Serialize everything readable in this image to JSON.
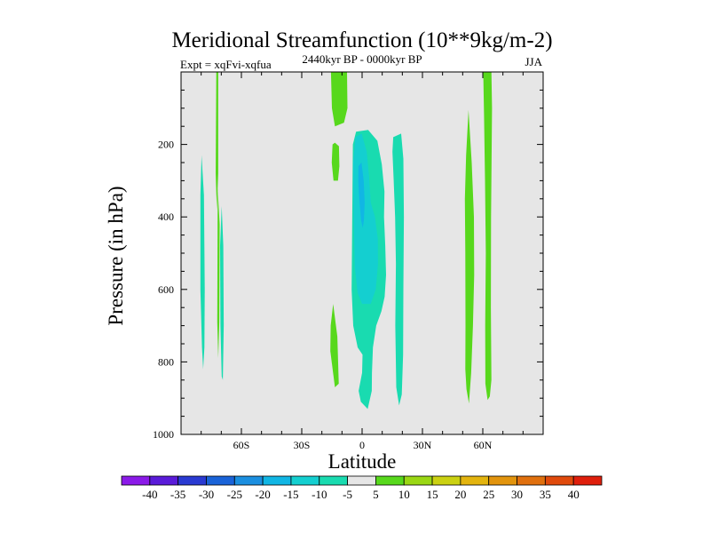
{
  "chart_data": {
    "type": "heatmap",
    "title": "Meridional Streamfunction (10**9kg/m-2)",
    "subtitle": "2440kyr BP - 0000kyr BP",
    "left_label": "Expt = xqFvi-xqfua",
    "right_label": "JJA",
    "xlabel": "Latitude",
    "ylabel": "Pressure (in hPa)",
    "xlim": [
      -90,
      90
    ],
    "ylim": [
      1000,
      0
    ],
    "x_ticks": [
      {
        "value": -60,
        "label": "60S"
      },
      {
        "value": -30,
        "label": "30S"
      },
      {
        "value": 0,
        "label": "0"
      },
      {
        "value": 30,
        "label": "30N"
      },
      {
        "value": 60,
        "label": "60N"
      }
    ],
    "y_ticks": [
      {
        "value": 200,
        "label": "200"
      },
      {
        "value": 400,
        "label": "400"
      },
      {
        "value": 600,
        "label": "600"
      },
      {
        "value": 800,
        "label": "800"
      },
      {
        "value": 1000,
        "label": "1000"
      }
    ],
    "background_color": "#e6e6e6",
    "contour_levels": [
      -40,
      -35,
      -30,
      -25,
      -20,
      -15,
      -10,
      -5,
      5,
      10,
      15,
      20,
      25,
      30,
      35,
      40
    ],
    "colorbar_colors": [
      "#8b1ae8",
      "#5a1bd9",
      "#2a3ad2",
      "#1a63d8",
      "#1b8fe0",
      "#11b6e4",
      "#14cfd0",
      "#19dbb0",
      "#e6e6e6",
      "#57d81c",
      "#9ad714",
      "#cbd112",
      "#e3b40e",
      "#e2940d",
      "#e0700e",
      "#e04a0c",
      "#df1f0c"
    ],
    "regions": [
      {
        "level": "5 to 10",
        "color": "#57d81c",
        "points": [
          [
            -72.5,
            0
          ],
          [
            -71.5,
            0
          ],
          [
            -71.5,
            280
          ],
          [
            -72.2,
            380
          ],
          [
            -72.8,
            280
          ]
        ]
      },
      {
        "level": "5 to 10",
        "color": "#57d81c",
        "points": [
          [
            -71.8,
            320
          ],
          [
            -70.8,
            420
          ],
          [
            -71.0,
            690
          ],
          [
            -71.5,
            790
          ],
          [
            -72.0,
            690
          ]
        ]
      },
      {
        "level": "-10 to -5",
        "color": "#19dbb0",
        "points": [
          [
            -79.8,
            230
          ],
          [
            -78.6,
            340
          ],
          [
            -78.2,
            600
          ],
          [
            -78.4,
            760
          ],
          [
            -79.0,
            820
          ],
          [
            -79.6,
            760
          ],
          [
            -80.4,
            600
          ],
          [
            -80.4,
            340
          ]
        ]
      },
      {
        "level": "-10 to -5",
        "color": "#19dbb0",
        "points": [
          [
            -69.8,
            370
          ],
          [
            -69.0,
            480
          ],
          [
            -68.8,
            700
          ],
          [
            -69.2,
            850
          ],
          [
            -69.8,
            840
          ],
          [
            -70.4,
            700
          ],
          [
            -70.6,
            480
          ]
        ]
      },
      {
        "level": "5 to 10",
        "color": "#57d81c",
        "points": [
          [
            -15.5,
            0
          ],
          [
            -7.5,
            0
          ],
          [
            -7.3,
            100
          ],
          [
            -9.0,
            140
          ],
          [
            -13.5,
            150
          ],
          [
            -15.0,
            100
          ]
        ]
      },
      {
        "level": "5 to 10",
        "color": "#57d81c",
        "points": [
          [
            -13.5,
            195
          ],
          [
            -11.5,
            205
          ],
          [
            -11.3,
            260
          ],
          [
            -12.0,
            300
          ],
          [
            -14.2,
            300
          ],
          [
            -15.1,
            250
          ],
          [
            -14.7,
            200
          ]
        ]
      },
      {
        "level": "5 to 10",
        "color": "#57d81c",
        "points": [
          [
            -14.4,
            640
          ],
          [
            -12.3,
            730
          ],
          [
            -11.6,
            860
          ],
          [
            -13.5,
            870
          ],
          [
            -15.8,
            770
          ],
          [
            -15.6,
            700
          ]
        ]
      },
      {
        "level": "-10 to -5",
        "color": "#19dbb0",
        "points": [
          [
            -3.0,
            165
          ],
          [
            3.0,
            160
          ],
          [
            7.6,
            190
          ],
          [
            9.8,
            255
          ],
          [
            11.1,
            330
          ],
          [
            10.9,
            400
          ],
          [
            11.5,
            480
          ],
          [
            11.9,
            560
          ],
          [
            11.2,
            620
          ],
          [
            9.6,
            660
          ],
          [
            7.0,
            700
          ],
          [
            5.4,
            760
          ],
          [
            4.9,
            830
          ],
          [
            4.8,
            880
          ],
          [
            2.8,
            930
          ],
          [
            -0.6,
            910
          ],
          [
            -1.7,
            880
          ],
          [
            0.0,
            830
          ],
          [
            0.2,
            780
          ],
          [
            -2.2,
            760
          ],
          [
            -4.4,
            700
          ],
          [
            -5.2,
            600
          ],
          [
            -4.9,
            400
          ],
          [
            -4.6,
            200
          ]
        ]
      },
      {
        "level": "-15 to -10",
        "color": "#14cfd0",
        "points": [
          [
            -4.4,
            250
          ],
          [
            -3.3,
            180
          ],
          [
            -0.2,
            170
          ],
          [
            2.3,
            220
          ],
          [
            3.5,
            290
          ],
          [
            4.3,
            360
          ],
          [
            6.4,
            400
          ],
          [
            7.8,
            460
          ],
          [
            7.9,
            530
          ],
          [
            6.8,
            600
          ],
          [
            4.3,
            640
          ],
          [
            0.0,
            640
          ],
          [
            -2.2,
            610
          ],
          [
            -3.6,
            540
          ],
          [
            -4.2,
            400
          ]
        ]
      },
      {
        "level": "-20 to -15",
        "color": "#11b6e4",
        "points": [
          [
            -1.8,
            260
          ],
          [
            -0.3,
            250
          ],
          [
            0.8,
            300
          ],
          [
            1.3,
            360
          ],
          [
            0.9,
            410
          ],
          [
            0.3,
            430
          ],
          [
            -0.5,
            410
          ],
          [
            -1.4,
            350
          ],
          [
            -1.9,
            300
          ]
        ]
      },
      {
        "level": "-10 to -5",
        "color": "#19dbb0",
        "points": [
          [
            15.5,
            180
          ],
          [
            19.4,
            170
          ],
          [
            20.5,
            240
          ],
          [
            20.8,
            400
          ],
          [
            20.5,
            600
          ],
          [
            20.4,
            780
          ],
          [
            19.7,
            890
          ],
          [
            18.4,
            920
          ],
          [
            17.0,
            870
          ],
          [
            16.5,
            700
          ],
          [
            16.8,
            530
          ],
          [
            16.4,
            400
          ],
          [
            15.7,
            300
          ],
          [
            15.1,
            220
          ]
        ]
      },
      {
        "level": "5 to 10",
        "color": "#57d81c",
        "points": [
          [
            60.2,
            0
          ],
          [
            64.3,
            0
          ],
          [
            64.6,
            100
          ],
          [
            64.1,
            400
          ],
          [
            64.0,
            650
          ],
          [
            64.3,
            850
          ],
          [
            63.5,
            895
          ],
          [
            62.4,
            905
          ],
          [
            61.3,
            860
          ],
          [
            61.2,
            700
          ],
          [
            61.5,
            500
          ],
          [
            61.1,
            300
          ],
          [
            60.6,
            120
          ]
        ]
      },
      {
        "level": "5 to 10",
        "color": "#57d81c",
        "points": [
          [
            52.9,
            105
          ],
          [
            54.5,
            250
          ],
          [
            55.6,
            400
          ],
          [
            55.7,
            560
          ],
          [
            55.1,
            700
          ],
          [
            54.2,
            830
          ],
          [
            53.1,
            915
          ],
          [
            51.9,
            875
          ],
          [
            51.3,
            820
          ],
          [
            51.4,
            700
          ],
          [
            51.3,
            500
          ],
          [
            51.1,
            350
          ],
          [
            51.7,
            230
          ]
        ]
      }
    ]
  }
}
